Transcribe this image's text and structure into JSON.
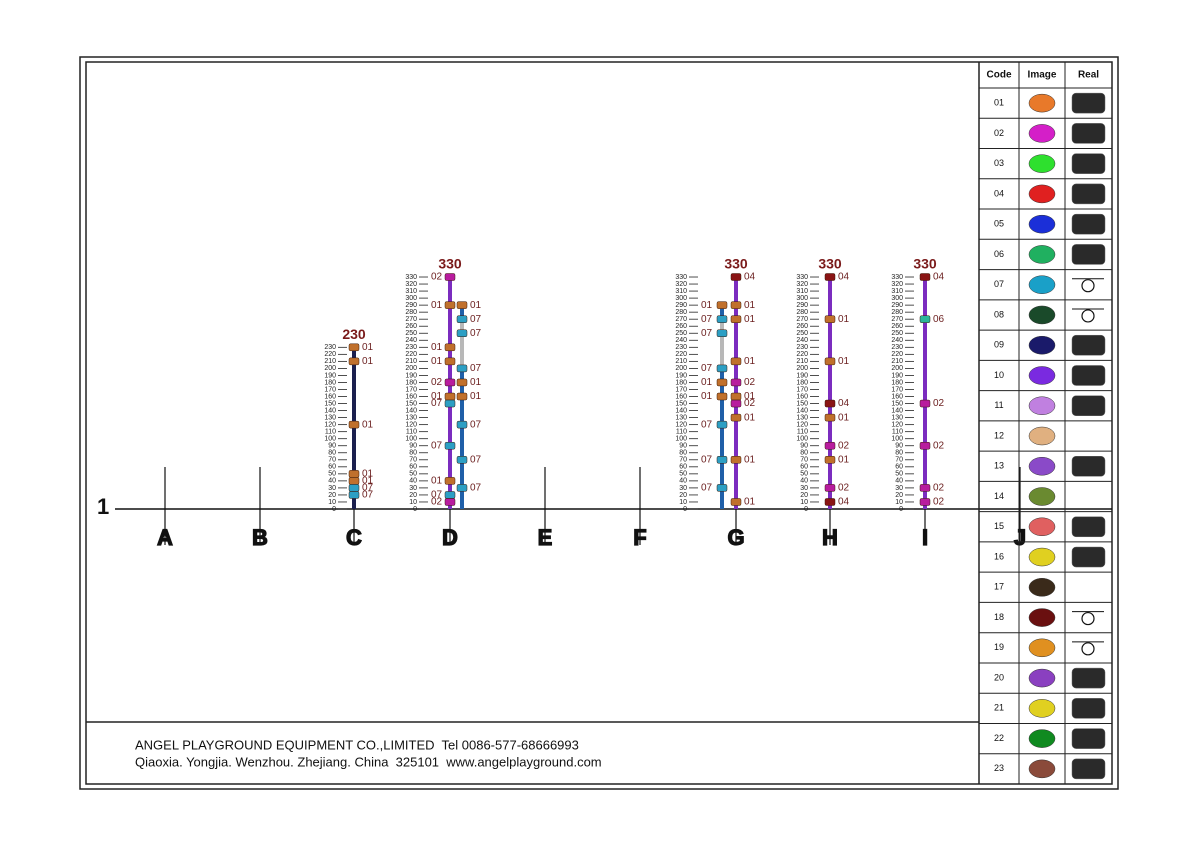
{
  "grid": {
    "row": "1",
    "columns": [
      "A",
      "B",
      "C",
      "D",
      "E",
      "F",
      "G",
      "H",
      "I",
      "J"
    ]
  },
  "code_colors": {
    "01": "#c0702c",
    "02": "#b81c9e",
    "04": "#8a1414",
    "06": "#2bb59a",
    "07": "#2c9fc4"
  },
  "posts": [
    {
      "height": 230,
      "ticks": [
        230,
        220,
        210,
        200,
        190,
        180,
        170,
        160,
        150,
        140,
        130,
        120,
        110,
        100,
        90,
        80,
        70,
        60,
        50,
        40,
        30,
        20,
        10,
        0
      ],
      "left_fittings": [],
      "right_fittings": [
        {
          "height": 230,
          "code": "01"
        },
        {
          "height": 210,
          "code": "01"
        },
        {
          "height": 120,
          "code": "01"
        },
        {
          "height": 50,
          "code": "01"
        },
        {
          "height": 40,
          "code": "01"
        },
        {
          "height": 30,
          "code": "07"
        },
        {
          "height": 20,
          "code": "07"
        }
      ]
    },
    {
      "height": 330,
      "ticks": [
        330,
        320,
        310,
        300,
        290,
        280,
        270,
        260,
        250,
        240,
        230,
        220,
        210,
        200,
        190,
        180,
        170,
        160,
        150,
        140,
        130,
        120,
        110,
        100,
        90,
        80,
        70,
        60,
        50,
        40,
        30,
        20,
        10,
        0
      ],
      "left_fittings": [
        {
          "height": 330,
          "code": "02"
        },
        {
          "height": 290,
          "code": "01"
        },
        {
          "height": 230,
          "code": "01"
        },
        {
          "height": 210,
          "code": "01"
        },
        {
          "height": 180,
          "code": "02"
        },
        {
          "height": 160,
          "code": "01"
        },
        {
          "height": 150,
          "code": "07"
        },
        {
          "height": 90,
          "code": "07"
        },
        {
          "height": 40,
          "code": "01"
        },
        {
          "height": 20,
          "code": "07"
        },
        {
          "height": 10,
          "code": "02"
        }
      ],
      "right_fittings": [
        {
          "height": 290,
          "code": "01"
        },
        {
          "height": 270,
          "code": "07"
        },
        {
          "height": 250,
          "code": "07"
        },
        {
          "height": 200,
          "code": "07"
        },
        {
          "height": 180,
          "code": "01"
        },
        {
          "height": 160,
          "code": "01"
        },
        {
          "height": 120,
          "code": "07"
        },
        {
          "height": 70,
          "code": "07"
        },
        {
          "height": 30,
          "code": "07"
        }
      ]
    },
    {
      "height": 330,
      "ticks": [
        330,
        320,
        310,
        300,
        290,
        280,
        270,
        260,
        250,
        240,
        230,
        220,
        210,
        200,
        190,
        180,
        170,
        160,
        150,
        140,
        130,
        120,
        110,
        100,
        90,
        80,
        70,
        60,
        50,
        40,
        30,
        20,
        10,
        0
      ],
      "left_fittings": [
        {
          "height": 290,
          "code": "01"
        },
        {
          "height": 270,
          "code": "07"
        },
        {
          "height": 250,
          "code": "07"
        },
        {
          "height": 200,
          "code": "07"
        },
        {
          "height": 180,
          "code": "01"
        },
        {
          "height": 160,
          "code": "01"
        },
        {
          "height": 120,
          "code": "07"
        },
        {
          "height": 70,
          "code": "07"
        },
        {
          "height": 30,
          "code": "07"
        }
      ],
      "right_fittings": [
        {
          "height": 330,
          "code": "04"
        },
        {
          "height": 290,
          "code": "01"
        },
        {
          "height": 270,
          "code": "01"
        },
        {
          "height": 210,
          "code": "01"
        },
        {
          "height": 180,
          "code": "02"
        },
        {
          "height": 160,
          "code": "01"
        },
        {
          "height": 150,
          "code": "02"
        },
        {
          "height": 130,
          "code": "01"
        },
        {
          "height": 70,
          "code": "01"
        },
        {
          "height": 10,
          "code": "01"
        }
      ]
    },
    {
      "height": 330,
      "ticks": [
        330,
        320,
        310,
        300,
        290,
        280,
        270,
        260,
        250,
        240,
        230,
        220,
        210,
        200,
        190,
        180,
        170,
        160,
        150,
        140,
        130,
        120,
        110,
        100,
        90,
        80,
        70,
        60,
        50,
        40,
        30,
        20,
        10,
        0
      ],
      "left_fittings": [],
      "right_fittings": [
        {
          "height": 330,
          "code": "04"
        },
        {
          "height": 270,
          "code": "01"
        },
        {
          "height": 210,
          "code": "01"
        },
        {
          "height": 150,
          "code": "04"
        },
        {
          "height": 130,
          "code": "01"
        },
        {
          "height": 90,
          "code": "02"
        },
        {
          "height": 70,
          "code": "01"
        },
        {
          "height": 30,
          "code": "02"
        },
        {
          "height": 10,
          "code": "04"
        }
      ]
    },
    {
      "height": 330,
      "ticks": [
        330,
        320,
        310,
        300,
        290,
        280,
        270,
        260,
        250,
        240,
        230,
        220,
        210,
        200,
        190,
        180,
        170,
        160,
        150,
        140,
        130,
        120,
        110,
        100,
        90,
        80,
        70,
        60,
        50,
        40,
        30,
        20,
        10,
        0
      ],
      "left_fittings": [],
      "right_fittings": [
        {
          "height": 330,
          "code": "04"
        },
        {
          "height": 270,
          "code": "06"
        },
        {
          "height": 150,
          "code": "02"
        },
        {
          "height": 90,
          "code": "02"
        },
        {
          "height": 30,
          "code": "02"
        },
        {
          "height": 10,
          "code": "02"
        }
      ]
    }
  ],
  "table": {
    "header": [
      "Code",
      "Image",
      "Real"
    ],
    "rows": [
      {
        "code": "01",
        "color": "#e8792a"
      },
      {
        "code": "02",
        "color": "#d41fc8"
      },
      {
        "code": "03",
        "color": "#2ee02e"
      },
      {
        "code": "04",
        "color": "#e02020"
      },
      {
        "code": "05",
        "color": "#1b2fd8"
      },
      {
        "code": "06",
        "color": "#20b060"
      },
      {
        "code": "07",
        "color": "#1aa0c8"
      },
      {
        "code": "08",
        "color": "#1a4a2a"
      },
      {
        "code": "09",
        "color": "#1a1a6a"
      },
      {
        "code": "10",
        "color": "#7a2ae0"
      },
      {
        "code": "11",
        "color": "#c080e0"
      },
      {
        "code": "12",
        "color": "#e0b080"
      },
      {
        "code": "13",
        "color": "#8a4ac8"
      },
      {
        "code": "14",
        "color": "#6a8a30"
      },
      {
        "code": "15",
        "color": "#e06060"
      },
      {
        "code": "16",
        "color": "#e0d020"
      },
      {
        "code": "17",
        "color": "#3a2a1a"
      },
      {
        "code": "18",
        "color": "#6a1010"
      },
      {
        "code": "19",
        "color": "#e09020"
      },
      {
        "code": "20",
        "color": "#8a40c0"
      },
      {
        "code": "21",
        "color": "#e0d020"
      },
      {
        "code": "22",
        "color": "#108a20"
      },
      {
        "code": "23",
        "color": "#8a4a3a"
      }
    ]
  },
  "footer": {
    "line1": "ANGEL PLAYGROUND EQUIPMENT CO.,LIMITED  Tel 0086-577-68666993",
    "line2": "Qiaoxia. Yongjia. Wenzhou. Zhejiang. China  325101  www.angelplayground.com"
  }
}
